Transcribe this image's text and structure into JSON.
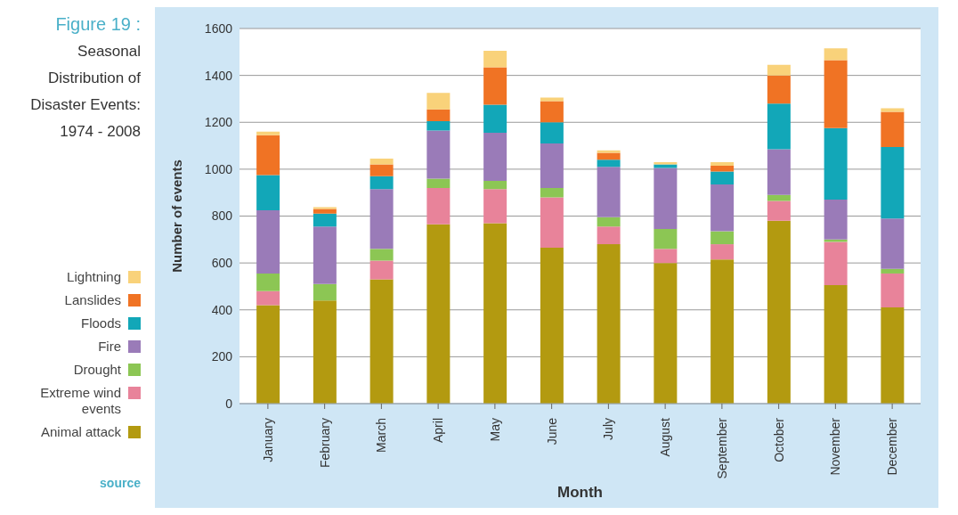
{
  "chart_data": {
    "type": "bar",
    "title": "Figure 19 :",
    "subtitle": "Seasonal Distribution of Disaster Events: 1974 - 2008",
    "xlabel": "Month",
    "ylabel": "Number of events",
    "annotations": [
      "source"
    ],
    "categories": [
      "January",
      "February",
      "March",
      "April",
      "May",
      "June",
      "July",
      "August",
      "September",
      "October",
      "November",
      "December"
    ],
    "stacked": true,
    "ylim": [
      0,
      1600
    ],
    "yticks": [
      0,
      200,
      400,
      600,
      800,
      1000,
      1200,
      1400,
      1600
    ],
    "grid": "y",
    "legend": "left",
    "series": [
      {
        "name": "Animal attack",
        "color": "#b39a10",
        "values": [
          420,
          440,
          530,
          765,
          770,
          665,
          680,
          600,
          615,
          780,
          505,
          410
        ]
      },
      {
        "name": "Extreme wind events",
        "color": "#e8839a",
        "values": [
          60,
          0,
          80,
          155,
          145,
          215,
          75,
          60,
          65,
          85,
          185,
          145
        ]
      },
      {
        "name": "Drought",
        "color": "#8cc654",
        "values": [
          75,
          70,
          50,
          40,
          35,
          40,
          40,
          85,
          55,
          25,
          10,
          20
        ]
      },
      {
        "name": "Fire",
        "color": "#9a7bb8",
        "values": [
          270,
          245,
          255,
          205,
          205,
          190,
          215,
          260,
          200,
          195,
          170,
          215
        ]
      },
      {
        "name": "Floods",
        "color": "#12a7b8",
        "values": [
          150,
          55,
          55,
          40,
          120,
          90,
          30,
          15,
          55,
          195,
          305,
          305
        ]
      },
      {
        "name": "Lanslides",
        "color": "#f07324",
        "values": [
          170,
          20,
          50,
          50,
          160,
          90,
          30,
          0,
          25,
          120,
          290,
          150
        ]
      },
      {
        "name": "Lightning",
        "color": "#f9d27a",
        "values": [
          15,
          8,
          25,
          70,
          70,
          15,
          10,
          10,
          15,
          45,
          50,
          15
        ]
      }
    ]
  }
}
